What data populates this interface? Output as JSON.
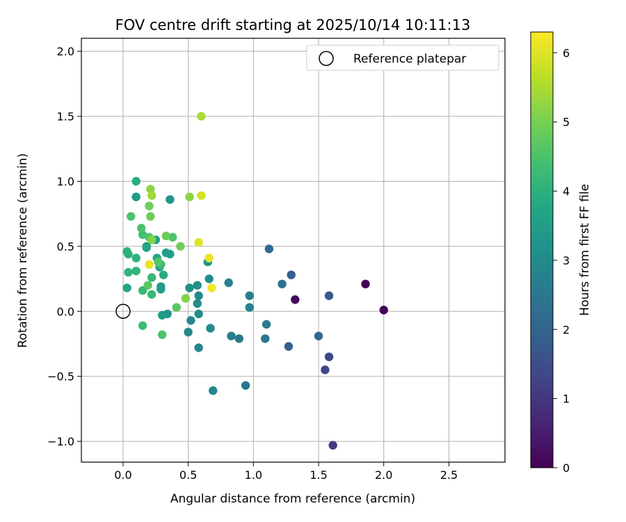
{
  "chart_data": {
    "type": "scatter",
    "title": "FOV centre drift starting at 2025/10/14 10:11:13",
    "xlabel": "Angular distance from reference (arcmin)",
    "ylabel": "Rotation from reference (arcmin)",
    "xlim": [
      -0.32,
      2.93
    ],
    "ylim": [
      -1.16,
      2.1
    ],
    "xticks": [
      0.0,
      0.5,
      1.0,
      1.5,
      2.0,
      2.5
    ],
    "xtick_labels": [
      "0.0",
      "0.5",
      "1.0",
      "1.5",
      "2.0",
      "2.5"
    ],
    "yticks": [
      -1.0,
      -0.5,
      0.0,
      0.5,
      1.0,
      1.5,
      2.0
    ],
    "ytick_labels": [
      "−1.0",
      "−0.5",
      "0.0",
      "0.5",
      "1.0",
      "1.5",
      "2.0"
    ],
    "grid": true,
    "legend": {
      "position": "upper-right",
      "label": "Reference platepar"
    },
    "reference_point": {
      "x": 0.0,
      "y": 0.0
    },
    "colorbar": {
      "label": "Hours from first FF file",
      "range": [
        0,
        6.3
      ],
      "ticks": [
        0,
        1,
        2,
        3,
        4,
        5,
        6
      ],
      "tick_labels": [
        "0",
        "1",
        "2",
        "3",
        "4",
        "5",
        "6"
      ],
      "colormap": "viridis"
    },
    "points": [
      {
        "x": 1.86,
        "y": 0.21,
        "hours": 0.0
      },
      {
        "x": 2.0,
        "y": 0.01,
        "hours": 0.05
      },
      {
        "x": 1.32,
        "y": 0.09,
        "hours": 0.1
      },
      {
        "x": 1.61,
        "y": -1.03,
        "hours": 1.1
      },
      {
        "x": 1.55,
        "y": -0.45,
        "hours": 1.3
      },
      {
        "x": 1.58,
        "y": -0.35,
        "hours": 1.4
      },
      {
        "x": 1.58,
        "y": 0.12,
        "hours": 1.75
      },
      {
        "x": 1.29,
        "y": 0.28,
        "hours": 1.85
      },
      {
        "x": 1.27,
        "y": -0.27,
        "hours": 1.9
      },
      {
        "x": 1.5,
        "y": -0.19,
        "hours": 2.1
      },
      {
        "x": 1.12,
        "y": 0.48,
        "hours": 2.2
      },
      {
        "x": 1.22,
        "y": 0.21,
        "hours": 2.4
      },
      {
        "x": 0.94,
        "y": -0.57,
        "hours": 2.5
      },
      {
        "x": 1.09,
        "y": -0.21,
        "hours": 2.5
      },
      {
        "x": 1.1,
        "y": -0.1,
        "hours": 2.6
      },
      {
        "x": 0.89,
        "y": -0.21,
        "hours": 2.55
      },
      {
        "x": 0.83,
        "y": -0.19,
        "hours": 2.7
      },
      {
        "x": 0.97,
        "y": 0.12,
        "hours": 2.7
      },
      {
        "x": 0.97,
        "y": 0.03,
        "hours": 2.8
      },
      {
        "x": 0.81,
        "y": 0.22,
        "hours": 2.8
      },
      {
        "x": 0.69,
        "y": -0.61,
        "hours": 2.9
      },
      {
        "x": 0.58,
        "y": -0.28,
        "hours": 2.9
      },
      {
        "x": 0.5,
        "y": -0.16,
        "hours": 2.9
      },
      {
        "x": 0.52,
        "y": -0.07,
        "hours": 2.9
      },
      {
        "x": 0.67,
        "y": -0.13,
        "hours": 2.95
      },
      {
        "x": 0.58,
        "y": -0.02,
        "hours": 3.0
      },
      {
        "x": 0.57,
        "y": 0.06,
        "hours": 3.0
      },
      {
        "x": 0.58,
        "y": 0.12,
        "hours": 3.0
      },
      {
        "x": 0.51,
        "y": 0.18,
        "hours": 3.1
      },
      {
        "x": 0.57,
        "y": 0.2,
        "hours": 3.1
      },
      {
        "x": 0.66,
        "y": 0.25,
        "hours": 3.1
      },
      {
        "x": 0.65,
        "y": 0.38,
        "hours": 3.2
      },
      {
        "x": 0.36,
        "y": 0.86,
        "hours": 3.3
      },
      {
        "x": 0.34,
        "y": -0.02,
        "hours": 3.3
      },
      {
        "x": 0.3,
        "y": -0.03,
        "hours": 3.4
      },
      {
        "x": 0.29,
        "y": 0.19,
        "hours": 3.4
      },
      {
        "x": 0.29,
        "y": 0.17,
        "hours": 3.5
      },
      {
        "x": 0.33,
        "y": 0.45,
        "hours": 3.5
      },
      {
        "x": 0.36,
        "y": 0.44,
        "hours": 3.5
      },
      {
        "x": 0.1,
        "y": 0.88,
        "hours": 3.4
      },
      {
        "x": 0.25,
        "y": 0.55,
        "hours": 3.6
      },
      {
        "x": 0.18,
        "y": 0.49,
        "hours": 3.6
      },
      {
        "x": 0.18,
        "y": 0.5,
        "hours": 3.7
      },
      {
        "x": 0.28,
        "y": 0.34,
        "hours": 3.7
      },
      {
        "x": 0.03,
        "y": 0.18,
        "hours": 3.7
      },
      {
        "x": 0.1,
        "y": 1.0,
        "hours": 3.9
      },
      {
        "x": 0.26,
        "y": 0.41,
        "hours": 3.8
      },
      {
        "x": 0.31,
        "y": 0.28,
        "hours": 3.9
      },
      {
        "x": 0.03,
        "y": 0.46,
        "hours": 4.0
      },
      {
        "x": 0.04,
        "y": 0.44,
        "hours": 4.0
      },
      {
        "x": 0.1,
        "y": 0.41,
        "hours": 4.0
      },
      {
        "x": 0.1,
        "y": 0.31,
        "hours": 4.1
      },
      {
        "x": 0.04,
        "y": 0.3,
        "hours": 4.1
      },
      {
        "x": 0.15,
        "y": 0.16,
        "hours": 4.2
      },
      {
        "x": 0.22,
        "y": 0.13,
        "hours": 4.2
      },
      {
        "x": 0.22,
        "y": 0.26,
        "hours": 4.2
      },
      {
        "x": 0.29,
        "y": 0.36,
        "hours": 4.3
      },
      {
        "x": 0.15,
        "y": -0.11,
        "hours": 4.3
      },
      {
        "x": 0.3,
        "y": -0.18,
        "hours": 4.5
      },
      {
        "x": 0.38,
        "y": 0.57,
        "hours": 4.5
      },
      {
        "x": 0.15,
        "y": 0.59,
        "hours": 4.4
      },
      {
        "x": 0.14,
        "y": 0.64,
        "hours": 4.5
      },
      {
        "x": 0.06,
        "y": 0.73,
        "hours": 4.5
      },
      {
        "x": 0.2,
        "y": 0.57,
        "hours": 4.6
      },
      {
        "x": 0.27,
        "y": 0.38,
        "hours": 4.6
      },
      {
        "x": 0.19,
        "y": 0.2,
        "hours": 4.7
      },
      {
        "x": 0.41,
        "y": 0.03,
        "hours": 4.7
      },
      {
        "x": 0.33,
        "y": 0.58,
        "hours": 4.9
      },
      {
        "x": 0.44,
        "y": 0.5,
        "hours": 4.9
      },
      {
        "x": 0.21,
        "y": 0.73,
        "hours": 4.9
      },
      {
        "x": 0.2,
        "y": 0.81,
        "hours": 4.9
      },
      {
        "x": 0.48,
        "y": 0.1,
        "hours": 5.1
      },
      {
        "x": 0.22,
        "y": 0.55,
        "hours": 5.1
      },
      {
        "x": 0.21,
        "y": 0.94,
        "hours": 5.2
      },
      {
        "x": 0.51,
        "y": 0.88,
        "hours": 5.2
      },
      {
        "x": 0.22,
        "y": 0.89,
        "hours": 5.4
      },
      {
        "x": 0.6,
        "y": 1.5,
        "hours": 5.5
      },
      {
        "x": 0.6,
        "y": 0.89,
        "hours": 5.9
      },
      {
        "x": 0.58,
        "y": 0.53,
        "hours": 6.0
      },
      {
        "x": 0.2,
        "y": 0.36,
        "hours": 6.1
      },
      {
        "x": 0.66,
        "y": 0.41,
        "hours": 6.1
      },
      {
        "x": 0.68,
        "y": 0.18,
        "hours": 6.2
      }
    ]
  }
}
